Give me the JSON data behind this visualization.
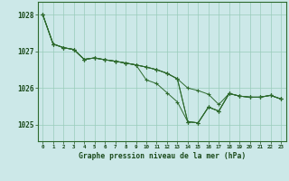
{
  "title": "Graphe pression niveau de la mer (hPa)",
  "background_color": "#cce8e8",
  "plot_bg_color": "#cce8e8",
  "line_color": "#2d6a2d",
  "marker_color": "#2d6a2d",
  "grid_color": "#99ccbb",
  "text_color": "#1a4a1a",
  "xlim": [
    -0.5,
    23.5
  ],
  "ylim": [
    1024.55,
    1028.35
  ],
  "yticks": [
    1025,
    1026,
    1027,
    1028
  ],
  "xticks": [
    0,
    1,
    2,
    3,
    4,
    5,
    6,
    7,
    8,
    9,
    10,
    11,
    12,
    13,
    14,
    15,
    16,
    17,
    18,
    19,
    20,
    21,
    22,
    23
  ],
  "hours": [
    0,
    1,
    2,
    3,
    4,
    5,
    6,
    7,
    8,
    9,
    10,
    11,
    12,
    13,
    14,
    15,
    16,
    17,
    18,
    19,
    20,
    21,
    22,
    23
  ],
  "series": [
    [
      1028.0,
      1027.2,
      1027.1,
      1027.0,
      1026.75,
      1026.82,
      1026.73,
      1026.68,
      1026.63,
      1026.58,
      1026.52,
      1026.47,
      1026.37,
      1026.22,
      1025.08,
      1025.05,
      1025.52,
      1025.37,
      1025.85,
      1025.78,
      1025.73,
      1025.73,
      1025.78,
      1025.68
    ],
    [
      1028.0,
      1027.2,
      1027.1,
      1027.0,
      1026.75,
      1026.82,
      1026.73,
      1026.68,
      1026.63,
      1026.58,
      1026.2,
      1026.12,
      1025.8,
      1025.55,
      1025.08,
      1025.05,
      1025.52,
      1025.37,
      1025.85,
      1025.78,
      1025.73,
      1025.73,
      1025.78,
      1025.68
    ],
    [
      1028.0,
      1027.2,
      1027.1,
      1027.0,
      1026.75,
      1026.82,
      1026.73,
      1026.68,
      1026.63,
      1026.58,
      1026.52,
      1026.47,
      1026.37,
      1026.22,
      1025.08,
      1025.05,
      1025.52,
      1025.37,
      1025.85,
      1025.78,
      1025.73,
      1025.73,
      1025.78,
      1025.68
    ],
    [
      1028.0,
      1027.2,
      1027.1,
      1027.0,
      1026.75,
      1026.82,
      1026.73,
      1026.68,
      1026.63,
      1026.58,
      1026.52,
      1026.47,
      1026.37,
      1026.22,
      1025.08,
      1025.05,
      1025.52,
      1025.37,
      1025.85,
      1025.78,
      1025.73,
      1025.73,
      1025.78,
      1025.68
    ]
  ],
  "series_straight": [
    1028.0,
    1027.2,
    1027.1,
    1027.0,
    1026.75,
    1026.82,
    1026.73,
    1026.68,
    1026.63,
    1026.58,
    1026.52,
    1026.47,
    1026.37,
    1026.22,
    1025.93,
    1025.85,
    1025.78,
    1025.55,
    1025.85,
    1025.78,
    1025.73,
    1025.73,
    1025.78,
    1025.68
  ]
}
